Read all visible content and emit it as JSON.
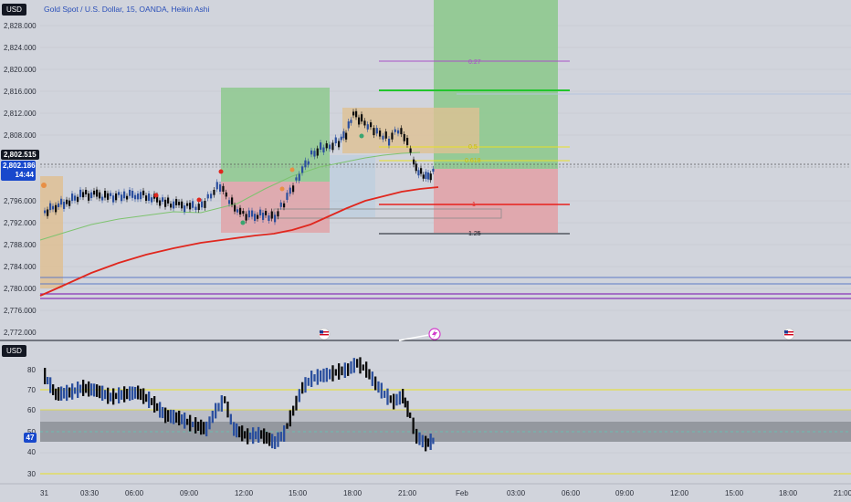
{
  "main_pane": {
    "currency_badge": "USD",
    "symbol_title": "Gold Spot / U.S. Dollar, 15, OANDA, Heikin Ashi",
    "price_ticks": [
      "2,828.000",
      "2,824.000",
      "2,820.000",
      "2,816.000",
      "2,812.000",
      "2,808.000",
      "2,796.000",
      "2,792.000",
      "2,788.000",
      "2,784.000",
      "2,780.000",
      "2,776.000",
      "2,772.000"
    ],
    "last_price": "2,802.515",
    "current_price": "2,802.186",
    "countdown": "14:44",
    "fib_labels": {
      "top": "0.27",
      "half": "0.5",
      "golden": "0.618",
      "one": "1",
      "ext": "1.25"
    }
  },
  "oscillator_pane": {
    "currency_badge": "USD",
    "ticks": [
      "80",
      "70",
      "60",
      "50",
      "40",
      "30"
    ],
    "current_value": "47"
  },
  "time_axis": [
    "31",
    "03:30",
    "06:00",
    "09:00",
    "12:00",
    "15:00",
    "18:00",
    "21:00",
    "Feb",
    "03:00",
    "06:00",
    "09:00",
    "12:00",
    "15:00",
    "18:00",
    "21:00"
  ],
  "colors": {
    "background": "#d1d4dc",
    "bull_candle": "#2b4f9e",
    "bear_candle": "#0b0b0b",
    "red_ma": "#e0271e",
    "green_ma": "#7ec36f",
    "fib_yellow": "#e9e024",
    "fib_green": "#22c52d",
    "fib_red": "#e8201c",
    "fib_purple": "#a94fc8",
    "support_blue": "#5d7ac6",
    "support_purple": "#8a35b8",
    "accent_badge": "#1848cc"
  },
  "icons": [
    "us-flag-event-icon",
    "lightning-event-icon",
    "us-flag-event-icon"
  ]
}
